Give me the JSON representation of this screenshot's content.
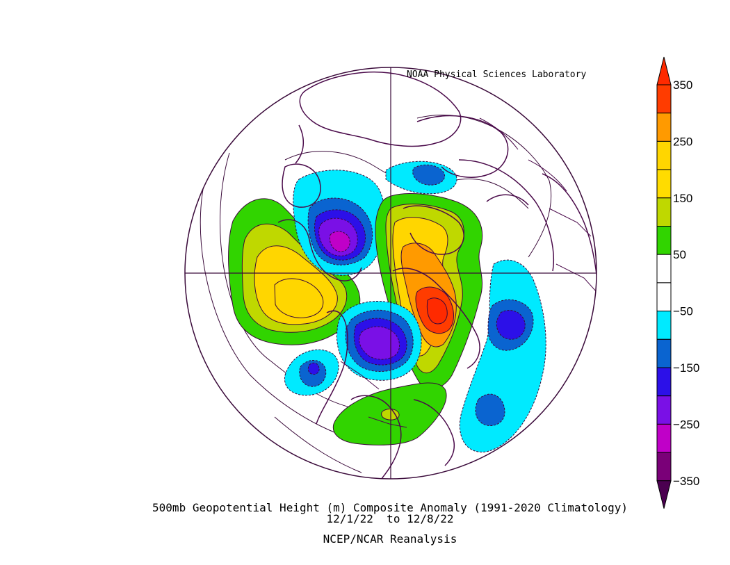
{
  "header": {
    "credit": "NOAA Physical Sciences Laboratory"
  },
  "caption": {
    "line1": "500mb Geopotential Height (m) Composite Anomaly (1991-2020 Climatology)",
    "line2": "12/1/22  to 12/8/22",
    "line3": "NCEP/NCAR Reanalysis"
  },
  "colorbar": {
    "labels": [
      "350",
      "250",
      "150",
      "50",
      "-50",
      "-150",
      "-250",
      "-350"
    ],
    "bins": [
      {
        "min": 350,
        "max": null,
        "color": "#ff2a00"
      },
      {
        "min": 300,
        "max": 350,
        "color": "#ff3c00"
      },
      {
        "min": 250,
        "max": 300,
        "color": "#ff9a00"
      },
      {
        "min": 200,
        "max": 250,
        "color": "#ffd600"
      },
      {
        "min": 150,
        "max": 200,
        "color": "#ffdc00"
      },
      {
        "min": 100,
        "max": 150,
        "color": "#bfd800"
      },
      {
        "min": 50,
        "max": 100,
        "color": "#31d400"
      },
      {
        "min": 0,
        "max": 50,
        "color": "#ffffff"
      },
      {
        "min": -50,
        "max": 0,
        "color": "#ffffff"
      },
      {
        "min": -100,
        "max": -50,
        "color": "#00eaff"
      },
      {
        "min": -150,
        "max": -100,
        "color": "#0a64d0"
      },
      {
        "min": -200,
        "max": -150,
        "color": "#2c10e8"
      },
      {
        "min": -250,
        "max": -200,
        "color": "#7a10e6"
      },
      {
        "min": -300,
        "max": -250,
        "color": "#c000c8"
      },
      {
        "min": -350,
        "max": -300,
        "color": "#7a0078"
      },
      {
        "min": null,
        "max": -350,
        "color": "#4b0050"
      }
    ]
  },
  "map": {
    "projection": "north polar stereographic",
    "colors": {
      "contour": "#3a0a3a",
      "coast": "#4a0a4a",
      "border": "#4a0a4a"
    }
  }
}
